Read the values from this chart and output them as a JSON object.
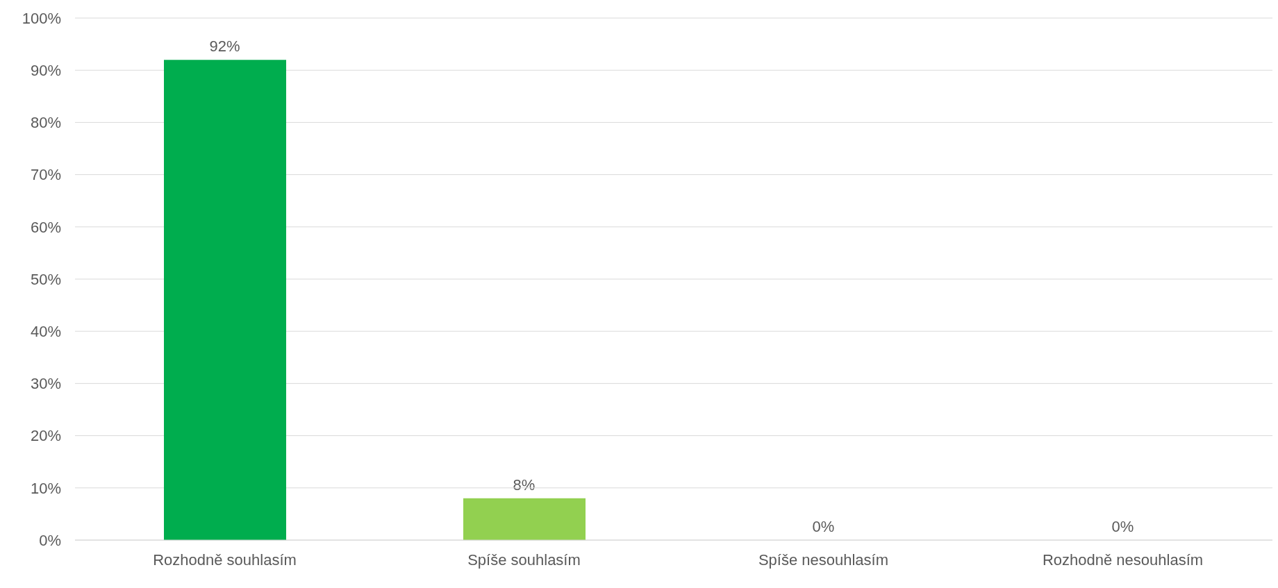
{
  "chart_data": {
    "type": "bar",
    "categories": [
      "Rozhodně souhlasím",
      "Spíše souhlasím",
      "Spíše nesouhlasím",
      "Rozhodně nesouhlasím"
    ],
    "values": [
      92,
      8,
      0,
      0
    ],
    "colors": [
      "#00ad4e",
      "#92d050",
      "#92d050",
      "#92d050"
    ],
    "value_labels": [
      "92%",
      "8%",
      "0%",
      "0%"
    ],
    "ylim": [
      0,
      100
    ],
    "yticks": [
      {
        "value": 0,
        "label": "0%"
      },
      {
        "value": 10,
        "label": "10%"
      },
      {
        "value": 20,
        "label": "20%"
      },
      {
        "value": 30,
        "label": "30%"
      },
      {
        "value": 40,
        "label": "40%"
      },
      {
        "value": 50,
        "label": "50%"
      },
      {
        "value": 60,
        "label": "60%"
      },
      {
        "value": 70,
        "label": "70%"
      },
      {
        "value": 80,
        "label": "80%"
      },
      {
        "value": 90,
        "label": "90%"
      },
      {
        "value": 100,
        "label": "100%"
      }
    ],
    "grid": "y",
    "legend": false
  }
}
